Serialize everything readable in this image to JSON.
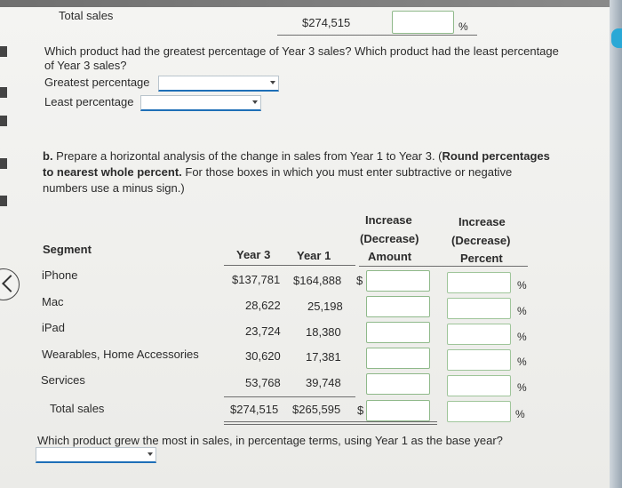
{
  "part_a": {
    "total_label": "Total sales",
    "total_value": "$274,515",
    "percent_symbol": "%",
    "question": "Which product had the greatest percentage of Year 3 sales? Which product had the least percentage",
    "question_line2": "of Year 3 sales?",
    "greatest_label": "Greatest percentage",
    "least_label": "Least percentage"
  },
  "part_b": {
    "instruction_prefix": "b.",
    "instruction_line1_normal": " Prepare a horizontal analysis of the change in sales from Year 1 to Year 3. (",
    "instruction_line1_bold": "Round percentages",
    "instruction_line2_bold": "to nearest whole percent.",
    "instruction_line2_normal": " For those boxes in which you must enter subtractive or negative",
    "instruction_line3": "numbers use a minus sign.)"
  },
  "table": {
    "headers": {
      "segment": "Segment",
      "year3": "Year 3",
      "year1": "Year 1",
      "amount_line1": "Increase",
      "amount_line2": "(Decrease)",
      "amount_line3": "Amount",
      "percent_line1": "Increase",
      "percent_line2": "(Decrease)",
      "percent_line3": "Percent"
    },
    "rows": [
      {
        "segment": "iPhone",
        "year3": "$137,781",
        "year1": "$164,888",
        "dollar": "$",
        "percent": "%"
      },
      {
        "segment": "Mac",
        "year3": "28,622",
        "year1": "25,198",
        "dollar": "",
        "percent": "%"
      },
      {
        "segment": "iPad",
        "year3": "23,724",
        "year1": "18,380",
        "dollar": "",
        "percent": "%"
      },
      {
        "segment": "Wearables, Home Accessories",
        "year3": "30,620",
        "year1": "17,381",
        "dollar": "",
        "percent": "%"
      },
      {
        "segment": "Services",
        "year3": "53,768",
        "year1": "39,748",
        "dollar": "",
        "percent": "%"
      }
    ],
    "total": {
      "segment": "Total sales",
      "year3": "$274,515",
      "year1": "$265,595",
      "dollar": "$",
      "percent": "%"
    }
  },
  "part_c": {
    "question": "Which product grew the most in sales, in percentage terms, using Year 1 as the base year?"
  }
}
